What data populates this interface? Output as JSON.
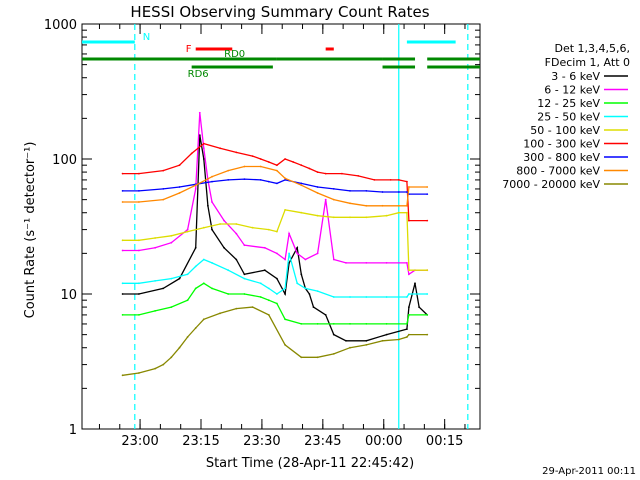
{
  "chart_data": {
    "type": "line",
    "title": "HESSI Observing Summary Count Rates",
    "xlabel": "Start Time (28-Apr-11 22:45:42)",
    "ylabel": "Count Rate (s⁻¹ detector⁻¹)",
    "ylog": true,
    "ylim": [
      1,
      1000
    ],
    "xlim": [
      0,
      98
    ],
    "x_unit": "minutes after 22:45:42",
    "x_ticks": [
      {
        "label": "23:00",
        "x": 14.3
      },
      {
        "label": "23:15",
        "x": 29.3
      },
      {
        "label": "23:30",
        "x": 44.3
      },
      {
        "label": "23:45",
        "x": 59.3
      },
      {
        "label": "00:00",
        "x": 74.3
      },
      {
        "label": "00:15",
        "x": 89.3
      }
    ],
    "y_ticks": [
      {
        "label": "1",
        "v": 1
      },
      {
        "label": "10",
        "v": 10
      },
      {
        "label": "100",
        "v": 100
      },
      {
        "label": "1000",
        "v": 1000
      }
    ],
    "legend_header": [
      "Det 1,3,4,5,6,",
      "FDecim 1, Att 0"
    ],
    "legend_position": "right",
    "series": [
      {
        "name": "3 - 6 keV",
        "color": "#000000",
        "x": [
          10,
          14,
          20,
          24,
          28,
          29,
          30,
          31,
          32,
          35,
          38,
          40,
          45,
          48,
          50,
          51,
          53,
          54,
          55,
          56,
          57,
          60,
          62,
          65,
          70,
          75,
          80,
          80.5,
          82,
          83,
          85
        ],
        "y": [
          10,
          10,
          11,
          13,
          22,
          150,
          100,
          45,
          30,
          22,
          18,
          14,
          15,
          13,
          10,
          17,
          22,
          14,
          11,
          10,
          8,
          7,
          5,
          4.5,
          4.5,
          5,
          5.5,
          8,
          12,
          8,
          7
        ]
      },
      {
        "name": "6 - 12 keV",
        "color": "#ff00ff",
        "x": [
          10,
          14,
          18,
          22,
          26,
          28,
          29,
          30,
          31,
          32,
          35,
          38,
          40,
          45,
          48,
          50,
          51,
          53,
          55,
          58,
          60,
          62,
          65,
          70,
          75,
          80,
          80.5,
          82,
          85
        ],
        "y": [
          21,
          21,
          22,
          24,
          30,
          60,
          220,
          120,
          70,
          48,
          35,
          28,
          23,
          22,
          20,
          18,
          28,
          20,
          18,
          20,
          50,
          18,
          17,
          17,
          17,
          17,
          14,
          15,
          15
        ]
      },
      {
        "name": "12 - 25 keV",
        "color": "#00ff00",
        "x": [
          10,
          14,
          18,
          22,
          26,
          28,
          30,
          32,
          36,
          40,
          44,
          46,
          48,
          50,
          54,
          58,
          62,
          66,
          70,
          75,
          80,
          80.5,
          85
        ],
        "y": [
          7,
          7,
          7.5,
          8,
          9,
          11,
          12,
          11,
          10,
          10,
          9.5,
          9,
          8.5,
          6.5,
          6,
          6,
          6,
          6,
          6,
          6,
          6,
          7,
          7
        ]
      },
      {
        "name": "25 - 50 keV",
        "color": "#00ffff",
        "x": [
          10,
          14,
          18,
          22,
          26,
          28,
          30,
          32,
          36,
          40,
          44,
          46,
          48,
          50,
          51,
          53,
          55,
          58,
          62,
          66,
          70,
          75,
          80,
          80.5,
          85
        ],
        "y": [
          12,
          12,
          12.5,
          13,
          14,
          16,
          18,
          17,
          15,
          13,
          12,
          11,
          10,
          11,
          20,
          12,
          11,
          10.5,
          9.5,
          9.5,
          9.5,
          9.5,
          9.5,
          10,
          10
        ]
      },
      {
        "name": "50 - 100 keV",
        "color": "#dddd00",
        "x": [
          10,
          14,
          18,
          22,
          26,
          30,
          34,
          38,
          42,
          46,
          48,
          50,
          54,
          58,
          62,
          66,
          70,
          75,
          78,
          80,
          80.5,
          85
        ],
        "y": [
          25,
          25,
          26,
          27,
          29,
          31,
          33,
          33,
          31,
          30,
          29,
          42,
          40,
          38,
          37,
          37,
          37,
          38,
          40,
          40,
          15,
          15
        ]
      },
      {
        "name": "100 - 300 keV",
        "color": "#ff0000",
        "x": [
          10,
          14,
          20,
          24,
          27,
          30,
          34,
          38,
          42,
          44,
          46,
          48,
          50,
          52,
          54,
          56,
          58,
          60,
          64,
          68,
          72,
          76,
          78,
          80,
          80.5,
          85
        ],
        "y": [
          78,
          78,
          82,
          90,
          110,
          130,
          120,
          112,
          105,
          100,
          95,
          90,
          100,
          95,
          90,
          85,
          80,
          78,
          78,
          75,
          70,
          70,
          70,
          68,
          35,
          35
        ]
      },
      {
        "name": "300 - 800 keV",
        "color": "#0000ff",
        "x": [
          10,
          14,
          20,
          24,
          28,
          32,
          36,
          40,
          44,
          46,
          48,
          50,
          54,
          58,
          62,
          66,
          70,
          74,
          78,
          80,
          80.5,
          85
        ],
        "y": [
          58,
          58,
          60,
          62,
          65,
          68,
          70,
          71,
          70,
          68,
          66,
          70,
          66,
          62,
          60,
          58,
          58,
          57,
          57,
          57,
          55,
          55
        ]
      },
      {
        "name": "800 - 7000 keV",
        "color": "#ff8800",
        "x": [
          10,
          14,
          20,
          24,
          28,
          32,
          36,
          40,
          44,
          48,
          50,
          54,
          58,
          62,
          66,
          70,
          74,
          78,
          80,
          80.5,
          85
        ],
        "y": [
          48,
          48,
          50,
          56,
          64,
          74,
          82,
          88,
          88,
          82,
          72,
          64,
          56,
          50,
          47,
          45,
          45,
          45,
          45,
          62,
          62
        ]
      },
      {
        "name": "7000 - 20000 keV",
        "color": "#888800",
        "x": [
          10,
          14,
          18,
          20,
          22,
          24,
          26,
          28,
          30,
          34,
          38,
          42,
          46,
          50,
          54,
          58,
          62,
          66,
          70,
          74,
          78,
          80,
          80.5,
          85
        ],
        "y": [
          2.5,
          2.6,
          2.8,
          3,
          3.4,
          4,
          4.8,
          5.6,
          6.5,
          7.2,
          7.8,
          8,
          7,
          4.2,
          3.4,
          3.4,
          3.6,
          4,
          4.2,
          4.5,
          4.6,
          4.8,
          5,
          5
        ]
      }
    ],
    "bars": [
      {
        "label": "N",
        "color": "#00ffff",
        "segments": [
          [
            0,
            13
          ],
          [
            80,
            92
          ]
        ],
        "level": "top"
      },
      {
        "label": "F",
        "color": "#ff0000",
        "segments": [
          [
            28,
            37
          ],
          [
            60,
            62
          ]
        ],
        "level": "upper"
      },
      {
        "label": "RD0",
        "color": "#008800",
        "segments": [
          [
            0,
            48
          ],
          [
            48,
            74
          ],
          [
            74,
            82
          ],
          [
            85,
            98
          ]
        ],
        "level": "middle"
      },
      {
        "label": "RD6",
        "color": "#008800",
        "segments": [
          [
            27,
            47
          ],
          [
            74,
            82
          ],
          [
            85,
            98
          ]
        ],
        "level": "lower"
      }
    ],
    "vlines": [
      {
        "x": 13,
        "color": "#00ffff",
        "style": "dashed"
      },
      {
        "x": 78,
        "color": "#00ffff",
        "style": "solid"
      },
      {
        "x": 95,
        "color": "#00ffff",
        "style": "dashed"
      }
    ]
  },
  "footer_date": "29-Apr-2011 00:11"
}
